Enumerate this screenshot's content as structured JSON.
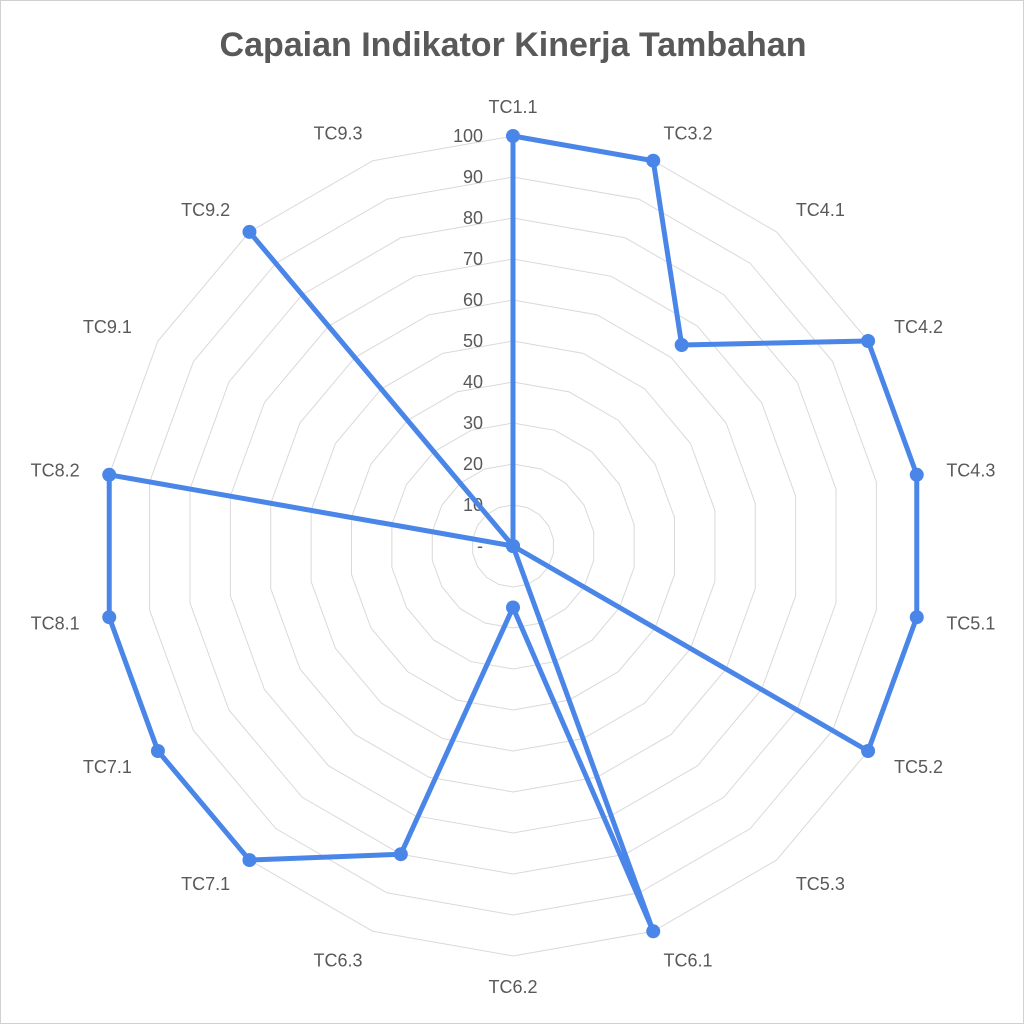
{
  "chart_data": {
    "type": "radar",
    "title": "Capaian Indikator Kinerja Tambahan",
    "categories": [
      "TC1.1",
      "TC3.2",
      "TC4.1",
      "TC4.2",
      "TC4.3",
      "TC5.1",
      "TC5.2",
      "TC5.3",
      "TC6.1",
      "TC6.2",
      "TC6.3",
      "TC7.1",
      "TC7.1",
      "TC8.1",
      "TC8.2",
      "TC9.1",
      "TC9.2",
      "TC9.3"
    ],
    "series": [
      {
        "values": [
          100,
          100,
          64,
          100,
          100,
          100,
          100,
          0,
          100,
          15,
          80,
          100,
          100,
          100,
          100,
          0,
          100,
          0
        ]
      }
    ],
    "r_ticks": [
      "-",
      "10",
      "20",
      "30",
      "40",
      "50",
      "60",
      "70",
      "80",
      "90",
      "100"
    ],
    "r_range": [
      0,
      100
    ],
    "grid": true,
    "legend": "none",
    "colors": {
      "series": "#4a86e8",
      "grid": "#d9d9d9",
      "text": "#595959"
    }
  }
}
